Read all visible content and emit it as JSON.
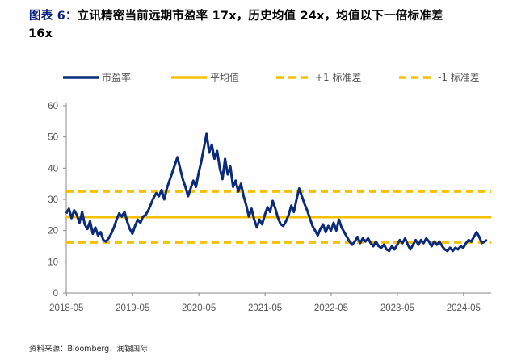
{
  "title": {
    "label": "图表 6：",
    "line1": "立讯精密当前远期市盈率 17x，历史均值 24x，均值以下一倍标准差",
    "line2": "16x"
  },
  "source": "资料来源：Bloomberg、润银国际",
  "colors": {
    "series": "#0b2a7a",
    "mean": "#f5c000",
    "std": "#f5c000",
    "axis": "#888888"
  },
  "chart_data": {
    "type": "line",
    "title": "",
    "xlabel": "",
    "ylabel": "",
    "ylim": [
      0,
      60
    ],
    "yticks": [
      0,
      10,
      20,
      30,
      40,
      50,
      60
    ],
    "xticks": [
      "2018-05",
      "2019-05",
      "2020-05",
      "2021-05",
      "2022-05",
      "2023-05",
      "2024-05"
    ],
    "xlim": [
      2018.33,
      2024.75
    ],
    "grid": false,
    "legend": {
      "position": "top",
      "entries": [
        "市盈率",
        "平均值",
        "+1 标准差",
        "-1 标准差"
      ]
    },
    "series": [
      {
        "name": "市盈率",
        "style": "solid-thick",
        "points": [
          [
            2018.33,
            25.5
          ],
          [
            2018.37,
            27.0
          ],
          [
            2018.41,
            24.0
          ],
          [
            2018.45,
            26.5
          ],
          [
            2018.49,
            25.0
          ],
          [
            2018.53,
            22.5
          ],
          [
            2018.57,
            26.0
          ],
          [
            2018.61,
            22.0
          ],
          [
            2018.65,
            20.5
          ],
          [
            2018.69,
            23.0
          ],
          [
            2018.73,
            19.0
          ],
          [
            2018.77,
            21.0
          ],
          [
            2018.81,
            18.5
          ],
          [
            2018.85,
            19.5
          ],
          [
            2018.89,
            17.0
          ],
          [
            2018.93,
            16.5
          ],
          [
            2018.97,
            17.5
          ],
          [
            2019.01,
            19.0
          ],
          [
            2019.05,
            21.0
          ],
          [
            2019.09,
            23.5
          ],
          [
            2019.13,
            25.5
          ],
          [
            2019.17,
            24.5
          ],
          [
            2019.21,
            26.0
          ],
          [
            2019.25,
            23.0
          ],
          [
            2019.29,
            20.5
          ],
          [
            2019.33,
            19.0
          ],
          [
            2019.37,
            21.5
          ],
          [
            2019.41,
            23.5
          ],
          [
            2019.45,
            22.5
          ],
          [
            2019.49,
            24.5
          ],
          [
            2019.53,
            25.0
          ],
          [
            2019.57,
            26.5
          ],
          [
            2019.61,
            28.5
          ],
          [
            2019.65,
            30.5
          ],
          [
            2019.69,
            32.0
          ],
          [
            2019.73,
            31.0
          ],
          [
            2019.77,
            33.0
          ],
          [
            2019.81,
            30.0
          ],
          [
            2019.85,
            33.5
          ],
          [
            2019.89,
            36.0
          ],
          [
            2019.93,
            38.5
          ],
          [
            2019.97,
            41.0
          ],
          [
            2020.01,
            43.5
          ],
          [
            2020.05,
            40.0
          ],
          [
            2020.09,
            36.5
          ],
          [
            2020.13,
            34.0
          ],
          [
            2020.17,
            31.0
          ],
          [
            2020.21,
            33.5
          ],
          [
            2020.25,
            36.0
          ],
          [
            2020.29,
            34.0
          ],
          [
            2020.33,
            38.5
          ],
          [
            2020.37,
            42.0
          ],
          [
            2020.41,
            46.5
          ],
          [
            2020.45,
            51.0
          ],
          [
            2020.49,
            45.0
          ],
          [
            2020.53,
            47.5
          ],
          [
            2020.57,
            43.0
          ],
          [
            2020.61,
            45.5
          ],
          [
            2020.65,
            40.0
          ],
          [
            2020.69,
            36.5
          ],
          [
            2020.73,
            43.0
          ],
          [
            2020.77,
            38.0
          ],
          [
            2020.81,
            40.5
          ],
          [
            2020.85,
            34.0
          ],
          [
            2020.89,
            36.0
          ],
          [
            2020.93,
            32.5
          ],
          [
            2020.97,
            35.0
          ],
          [
            2021.01,
            31.0
          ],
          [
            2021.05,
            28.0
          ],
          [
            2021.09,
            24.5
          ],
          [
            2021.13,
            27.0
          ],
          [
            2021.17,
            23.5
          ],
          [
            2021.21,
            21.0
          ],
          [
            2021.25,
            23.5
          ],
          [
            2021.29,
            22.0
          ],
          [
            2021.33,
            25.0
          ],
          [
            2021.37,
            27.5
          ],
          [
            2021.41,
            26.0
          ],
          [
            2021.45,
            29.5
          ],
          [
            2021.49,
            27.0
          ],
          [
            2021.53,
            24.0
          ],
          [
            2021.57,
            22.0
          ],
          [
            2021.61,
            21.5
          ],
          [
            2021.65,
            23.0
          ],
          [
            2021.69,
            25.0
          ],
          [
            2021.73,
            28.0
          ],
          [
            2021.77,
            26.0
          ],
          [
            2021.81,
            30.0
          ],
          [
            2021.85,
            33.5
          ],
          [
            2021.89,
            31.0
          ],
          [
            2021.93,
            28.5
          ],
          [
            2021.97,
            26.5
          ],
          [
            2022.01,
            24.0
          ],
          [
            2022.05,
            21.5
          ],
          [
            2022.09,
            20.0
          ],
          [
            2022.13,
            18.5
          ],
          [
            2022.17,
            20.5
          ],
          [
            2022.21,
            22.0
          ],
          [
            2022.25,
            19.5
          ],
          [
            2022.29,
            21.5
          ],
          [
            2022.33,
            20.0
          ],
          [
            2022.37,
            22.5
          ],
          [
            2022.41,
            20.0
          ],
          [
            2022.45,
            23.5
          ],
          [
            2022.49,
            21.0
          ],
          [
            2022.53,
            19.5
          ],
          [
            2022.57,
            18.0
          ],
          [
            2022.61,
            16.5
          ],
          [
            2022.65,
            15.5
          ],
          [
            2022.69,
            16.5
          ],
          [
            2022.73,
            18.0
          ],
          [
            2022.77,
            16.0
          ],
          [
            2022.81,
            17.5
          ],
          [
            2022.85,
            16.5
          ],
          [
            2022.89,
            17.5
          ],
          [
            2022.93,
            16.0
          ],
          [
            2022.97,
            15.0
          ],
          [
            2023.01,
            16.5
          ],
          [
            2023.05,
            15.0
          ],
          [
            2023.09,
            14.5
          ],
          [
            2023.13,
            15.5
          ],
          [
            2023.17,
            14.0
          ],
          [
            2023.21,
            13.5
          ],
          [
            2023.25,
            15.0
          ],
          [
            2023.29,
            14.0
          ],
          [
            2023.33,
            15.5
          ],
          [
            2023.37,
            17.0
          ],
          [
            2023.41,
            16.0
          ],
          [
            2023.45,
            17.5
          ],
          [
            2023.49,
            15.5
          ],
          [
            2023.53,
            14.0
          ],
          [
            2023.57,
            15.5
          ],
          [
            2023.61,
            17.0
          ],
          [
            2023.65,
            15.5
          ],
          [
            2023.69,
            17.0
          ],
          [
            2023.73,
            16.0
          ],
          [
            2023.77,
            17.5
          ],
          [
            2023.81,
            16.5
          ],
          [
            2023.85,
            15.0
          ],
          [
            2023.89,
            16.5
          ],
          [
            2023.93,
            15.5
          ],
          [
            2023.97,
            16.5
          ],
          [
            2024.01,
            15.0
          ],
          [
            2024.05,
            14.0
          ],
          [
            2024.09,
            13.5
          ],
          [
            2024.13,
            14.5
          ],
          [
            2024.17,
            13.5
          ],
          [
            2024.21,
            14.5
          ],
          [
            2024.25,
            14.0
          ],
          [
            2024.29,
            15.0
          ],
          [
            2024.33,
            14.5
          ],
          [
            2024.37,
            16.0
          ],
          [
            2024.41,
            17.0
          ],
          [
            2024.45,
            16.5
          ],
          [
            2024.49,
            18.0
          ],
          [
            2024.53,
            19.5
          ],
          [
            2024.57,
            18.0
          ],
          [
            2024.61,
            16.0
          ],
          [
            2024.65,
            16.5
          ],
          [
            2024.69,
            17.0
          ]
        ]
      },
      {
        "name": "平均值",
        "style": "solid",
        "value": 24.3
      },
      {
        "name": "+1 标准差",
        "style": "dashed",
        "value": 32.5
      },
      {
        "name": "-1 标准差",
        "style": "dashed",
        "value": 16.2
      }
    ]
  }
}
